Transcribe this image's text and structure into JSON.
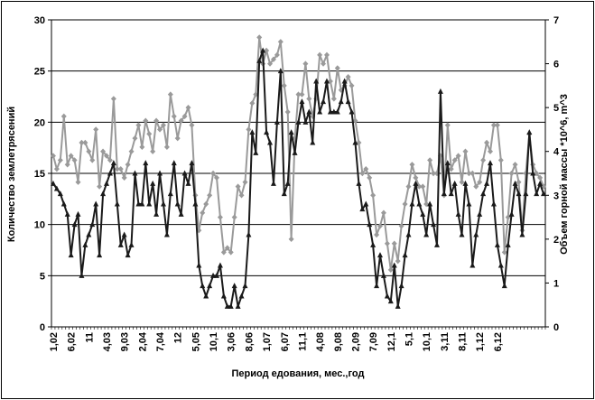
{
  "chart_data": {
    "type": "line",
    "title": "",
    "xlabel": "Период едования, мес.,год",
    "ylabel": "Количество землетрясений",
    "y2label": "Объем горной массы *10^6, m^3",
    "ylim": [
      0,
      30
    ],
    "y2lim": [
      0,
      7
    ],
    "yticks": [
      0,
      5,
      10,
      15,
      20,
      25,
      30
    ],
    "y2ticks": [
      0,
      1,
      2,
      3,
      4,
      5,
      6,
      7
    ],
    "grid": "horizontal",
    "legend": "none",
    "x_tick_labels": [
      "1,02",
      "6,02",
      "11",
      "4,03",
      "9,03",
      "2,04",
      "7,04",
      "12",
      "5,05",
      "10,1",
      "3,06",
      "8,06",
      "1,07",
      "6,07",
      "11,1",
      "4,08",
      "9,08",
      "2,09",
      "7,09",
      "12,1",
      "5,1",
      "10,1",
      "3,11",
      "8,11",
      "1,12",
      "6,12"
    ],
    "tick_every": 5,
    "series": [
      {
        "axis": "left",
        "color": "#1a1a1a",
        "marker": "triangle",
        "values": [
          14,
          13.5,
          13,
          12,
          11,
          7,
          10,
          11,
          5,
          8,
          9,
          10,
          12,
          7,
          13,
          14,
          15,
          16,
          12,
          8,
          9,
          7,
          8,
          15,
          12,
          12,
          16,
          12,
          14,
          11,
          15,
          12,
          9,
          13,
          16,
          12,
          11,
          15,
          14,
          16,
          12,
          6,
          4,
          3,
          4,
          5,
          5,
          6,
          3,
          2,
          2,
          4,
          2,
          3,
          4,
          9,
          19,
          17,
          26,
          27,
          19,
          18,
          14,
          20,
          25,
          13,
          14,
          19,
          17,
          20,
          22,
          20,
          21,
          18,
          24,
          21,
          22,
          24,
          21,
          21,
          21,
          22,
          24,
          22,
          21,
          18,
          14,
          11.5,
          12,
          10,
          8,
          4,
          7,
          5,
          3,
          2.5,
          6,
          2,
          4,
          7,
          9,
          12,
          14,
          12,
          11,
          9,
          12,
          10,
          8,
          23,
          13,
          16,
          13,
          14,
          11,
          9,
          14,
          12,
          6,
          9,
          11,
          13,
          14,
          16,
          12,
          8,
          6,
          4,
          8,
          11,
          14,
          13,
          9,
          13,
          19,
          15,
          13,
          14,
          13
        ]
      },
      {
        "axis": "right",
        "color": "#9a9a9a",
        "marker": "diamond",
        "values": [
          3.9,
          3.6,
          3.8,
          4.8,
          3.7,
          3.9,
          3.8,
          3.3,
          4.2,
          4.2,
          4.0,
          3.8,
          4.5,
          3.2,
          4.0,
          3.9,
          3.8,
          5.2,
          3.6,
          3.6,
          3.4,
          3.7,
          4.0,
          4.3,
          4.6,
          4.1,
          4.7,
          4.4,
          4.0,
          4.7,
          4.5,
          4.6,
          4.1,
          5.3,
          4.8,
          4.3,
          4.7,
          4.8,
          5.0,
          4.6,
          3.0,
          2.2,
          2.6,
          2.8,
          3.0,
          3.5,
          3.4,
          2.5,
          1.7,
          1.8,
          1.7,
          2.5,
          3.2,
          3.0,
          3.3,
          4.5,
          5.1,
          5.3,
          6.6,
          6.0,
          6.3,
          6.0,
          6.1,
          6.2,
          6.5,
          5.5,
          4.9,
          2.0,
          4.3,
          5.3,
          5.3,
          6.0,
          5.2,
          4.8,
          5.2,
          6.2,
          6.0,
          6.2,
          5.6,
          5.2,
          5.9,
          5.4,
          5.5,
          5.7,
          5.5,
          4.7,
          4.2,
          3.5,
          3.6,
          3.4,
          3.0,
          2.1,
          2.3,
          2.6,
          1.9,
          1.3,
          1.9,
          1.5,
          2.3,
          2.8,
          3.2,
          3.7,
          3.4,
          3.2,
          3.2,
          2.8,
          3.8,
          3.5,
          3.5,
          3.9,
          3.0,
          4.6,
          3.6,
          3.8,
          3.9,
          3.3,
          4.0,
          3.5,
          3.5,
          3.2,
          3.3,
          3.8,
          4.2,
          4.0,
          4.6,
          4.6,
          3.8,
          1.7,
          2.5,
          3.5,
          3.7,
          3.3,
          2.2,
          3.5,
          4.4,
          3.7,
          3.5,
          3.4,
          3.2
        ]
      }
    ]
  }
}
